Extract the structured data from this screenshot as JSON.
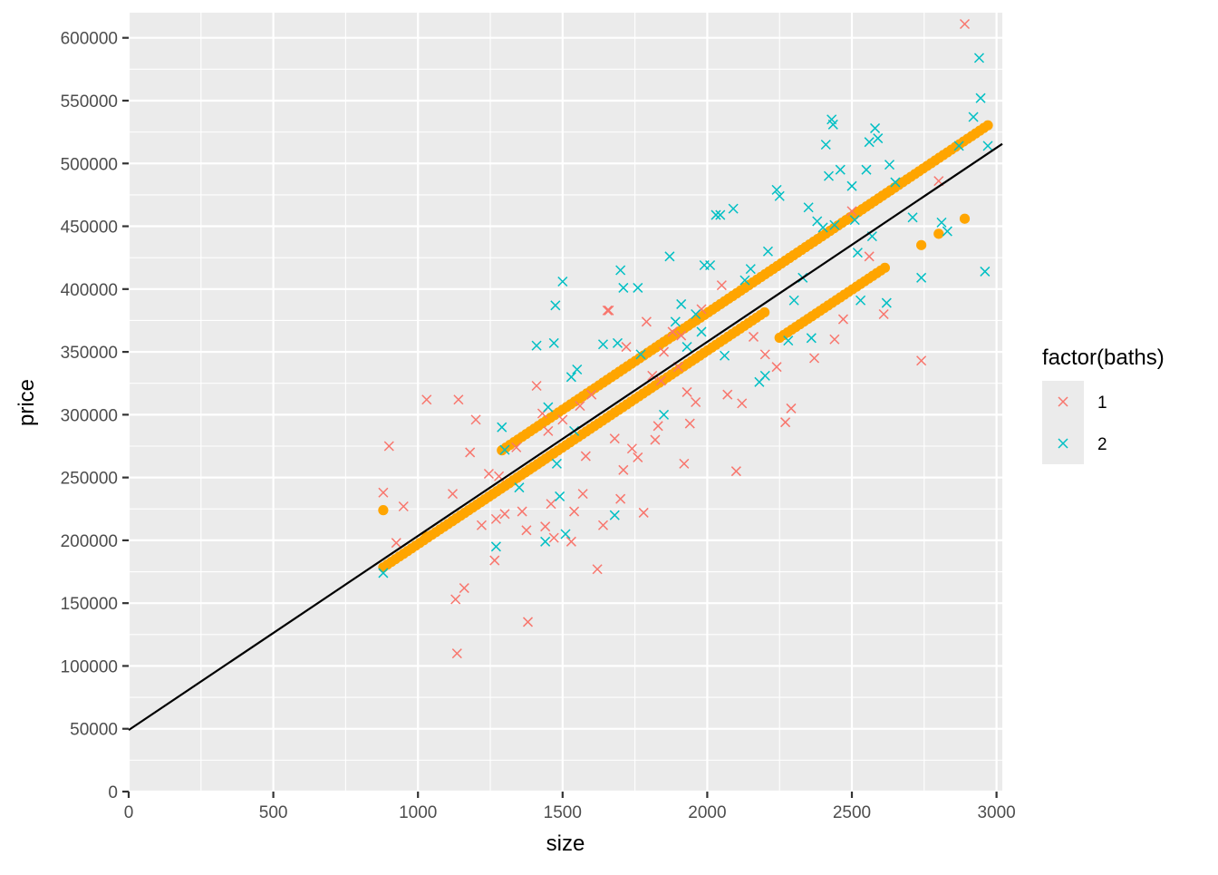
{
  "chart_data": {
    "type": "scatter",
    "title": "",
    "xlabel": "size",
    "ylabel": "price",
    "xlim": [
      0,
      3020
    ],
    "ylim": [
      0,
      620000
    ],
    "x_ticks": [
      0,
      500,
      1000,
      1500,
      2000,
      2500,
      3000
    ],
    "y_ticks": [
      0,
      50000,
      100000,
      150000,
      200000,
      250000,
      300000,
      350000,
      400000,
      450000,
      500000,
      550000,
      600000
    ],
    "grid": true,
    "legend": {
      "title": "factor(baths)",
      "position": "right",
      "entries": [
        {
          "label": "1",
          "color": "#F8766D",
          "shape": "x"
        },
        {
          "label": "2",
          "color": "#00BFC4",
          "shape": "x"
        }
      ]
    },
    "colors": {
      "panel_bg": "#EBEBEB",
      "grid": "#FFFFFF",
      "fitted_points": "#FFA500",
      "regression_line": "#000000",
      "baths_1": "#F8766D",
      "baths_2": "#00BFC4"
    },
    "regression_line": {
      "intercept": 49000,
      "slope": 154.5
    },
    "fitted_lines": [
      {
        "intercept": 43000,
        "slope": 154.0,
        "x_range": [
          880,
          1470
        ]
      },
      {
        "intercept": 73000,
        "slope": 154.0,
        "x_range": [
          1290,
          2980
        ]
      },
      {
        "intercept": 73000,
        "slope": 154.0,
        "x_range": [
          1640,
          2660
        ]
      },
      {
        "intercept": 43000,
        "slope": 154.0,
        "x_range": [
          1120,
          2200
        ]
      },
      {
        "intercept": 17000,
        "slope": 153.0,
        "x_range": [
          2250,
          2620
        ]
      }
    ],
    "fitted_extra": [
      [
        880,
        224000
      ],
      [
        1030,
        203000
      ],
      [
        2740,
        435000
      ],
      [
        2800,
        444000
      ],
      [
        2890,
        456000
      ]
    ],
    "series": [
      {
        "name": "1",
        "points": [
          [
            880,
            238000
          ],
          [
            900,
            275000
          ],
          [
            925,
            198000
          ],
          [
            950,
            227000
          ],
          [
            1030,
            312000
          ],
          [
            1120,
            237000
          ],
          [
            1130,
            153000
          ],
          [
            1135,
            110000
          ],
          [
            1140,
            312000
          ],
          [
            1160,
            162000
          ],
          [
            1180,
            270000
          ],
          [
            1200,
            296000
          ],
          [
            1220,
            212000
          ],
          [
            1245,
            253000
          ],
          [
            1265,
            184000
          ],
          [
            1270,
            217000
          ],
          [
            1280,
            251000
          ],
          [
            1300,
            221000
          ],
          [
            1340,
            274000
          ],
          [
            1360,
            223000
          ],
          [
            1375,
            208000
          ],
          [
            1380,
            135000
          ],
          [
            1410,
            323000
          ],
          [
            1430,
            301000
          ],
          [
            1440,
            211000
          ],
          [
            1450,
            287000
          ],
          [
            1460,
            229000
          ],
          [
            1470,
            202000
          ],
          [
            1500,
            296000
          ],
          [
            1530,
            199000
          ],
          [
            1540,
            223000
          ],
          [
            1560,
            307000
          ],
          [
            1570,
            237000
          ],
          [
            1580,
            267000
          ],
          [
            1600,
            316000
          ],
          [
            1620,
            177000
          ],
          [
            1640,
            212000
          ],
          [
            1655,
            383000
          ],
          [
            1660,
            383000
          ],
          [
            1680,
            281000
          ],
          [
            1700,
            233000
          ],
          [
            1710,
            256000
          ],
          [
            1720,
            354000
          ],
          [
            1740,
            273000
          ],
          [
            1760,
            266000
          ],
          [
            1780,
            222000
          ],
          [
            1790,
            374000
          ],
          [
            1810,
            331000
          ],
          [
            1820,
            280000
          ],
          [
            1830,
            291000
          ],
          [
            1840,
            327000
          ],
          [
            1850,
            350000
          ],
          [
            1880,
            366000
          ],
          [
            1900,
            338000
          ],
          [
            1910,
            363000
          ],
          [
            1920,
            261000
          ],
          [
            1930,
            318000
          ],
          [
            1940,
            293000
          ],
          [
            1960,
            310000
          ],
          [
            1980,
            384000
          ],
          [
            2050,
            403000
          ],
          [
            2070,
            316000
          ],
          [
            2100,
            255000
          ],
          [
            2120,
            309000
          ],
          [
            2160,
            362000
          ],
          [
            2200,
            348000
          ],
          [
            2240,
            338000
          ],
          [
            2270,
            294000
          ],
          [
            2290,
            305000
          ],
          [
            2370,
            345000
          ],
          [
            2440,
            360000
          ],
          [
            2470,
            376000
          ],
          [
            2500,
            462000
          ],
          [
            2560,
            426000
          ],
          [
            2610,
            380000
          ],
          [
            2740,
            343000
          ],
          [
            2800,
            486000
          ],
          [
            2890,
            611000
          ]
        ]
      },
      {
        "name": "2",
        "points": [
          [
            880,
            174000
          ],
          [
            1270,
            195000
          ],
          [
            1290,
            290000
          ],
          [
            1300,
            272000
          ],
          [
            1350,
            242000
          ],
          [
            1410,
            355000
          ],
          [
            1440,
            199000
          ],
          [
            1450,
            306000
          ],
          [
            1470,
            357000
          ],
          [
            1475,
            387000
          ],
          [
            1480,
            261000
          ],
          [
            1490,
            235000
          ],
          [
            1500,
            406000
          ],
          [
            1510,
            205000
          ],
          [
            1530,
            330000
          ],
          [
            1540,
            287000
          ],
          [
            1550,
            336000
          ],
          [
            1640,
            356000
          ],
          [
            1680,
            220000
          ],
          [
            1690,
            357000
          ],
          [
            1700,
            415000
          ],
          [
            1710,
            401000
          ],
          [
            1760,
            401000
          ],
          [
            1770,
            348000
          ],
          [
            1850,
            300000
          ],
          [
            1870,
            426000
          ],
          [
            1890,
            374000
          ],
          [
            1910,
            388000
          ],
          [
            1930,
            354000
          ],
          [
            1960,
            380000
          ],
          [
            1980,
            366000
          ],
          [
            1990,
            419000
          ],
          [
            2010,
            419000
          ],
          [
            2030,
            459000
          ],
          [
            2045,
            459000
          ],
          [
            2060,
            347000
          ],
          [
            2090,
            464000
          ],
          [
            2130,
            407000
          ],
          [
            2150,
            416000
          ],
          [
            2180,
            326000
          ],
          [
            2200,
            331000
          ],
          [
            2210,
            430000
          ],
          [
            2240,
            479000
          ],
          [
            2250,
            474000
          ],
          [
            2280,
            359000
          ],
          [
            2300,
            391000
          ],
          [
            2330,
            409000
          ],
          [
            2350,
            465000
          ],
          [
            2360,
            361000
          ],
          [
            2380,
            454000
          ],
          [
            2400,
            449000
          ],
          [
            2410,
            515000
          ],
          [
            2420,
            490000
          ],
          [
            2430,
            535000
          ],
          [
            2435,
            531000
          ],
          [
            2440,
            451000
          ],
          [
            2460,
            495000
          ],
          [
            2500,
            482000
          ],
          [
            2510,
            455000
          ],
          [
            2520,
            429000
          ],
          [
            2530,
            391000
          ],
          [
            2550,
            495000
          ],
          [
            2560,
            517000
          ],
          [
            2570,
            442000
          ],
          [
            2580,
            528000
          ],
          [
            2590,
            520000
          ],
          [
            2620,
            389000
          ],
          [
            2630,
            499000
          ],
          [
            2650,
            485000
          ],
          [
            2710,
            457000
          ],
          [
            2740,
            409000
          ],
          [
            2810,
            453000
          ],
          [
            2830,
            446000
          ],
          [
            2870,
            514000
          ],
          [
            2920,
            537000
          ],
          [
            2940,
            584000
          ],
          [
            2945,
            552000
          ],
          [
            2960,
            414000
          ],
          [
            2970,
            514000
          ]
        ]
      }
    ]
  }
}
